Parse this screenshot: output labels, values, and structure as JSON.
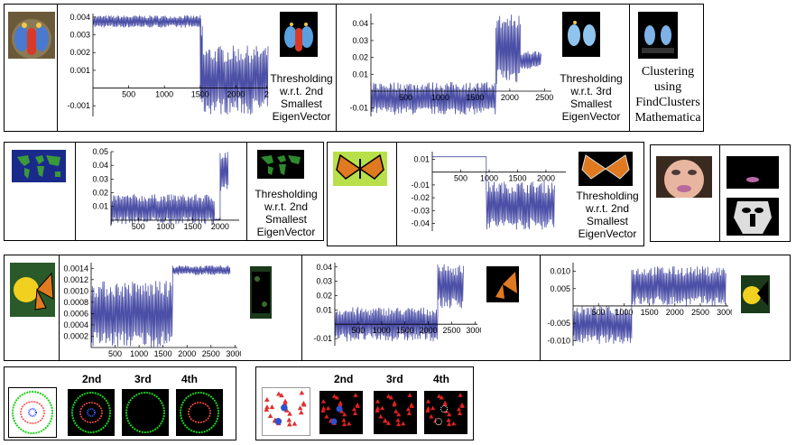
{
  "series_color": "#4b4fa6",
  "captions": {
    "thresh_2nd": [
      "Thresholding",
      "w.r.t. 2nd",
      "Smallest",
      "EigenVector"
    ],
    "thresh_3rd": [
      "Thresholding",
      "w.r.t. 3rd",
      "Smallest",
      "EigenVector"
    ],
    "clustering": [
      "Clustering",
      "using",
      "FindClusters",
      "Mathematica"
    ]
  },
  "eigen_labels": [
    "2nd",
    "3rd",
    "4th"
  ],
  "icons": {
    "mandrill": "mandrill-photo-icon",
    "world": "world-map-icon",
    "butterfly": "butterfly-photo-icon",
    "face": "face-photo-icon",
    "flower_butterfly": "butterfly-on-flower-photo-icon",
    "rings": "concentric-rings-icon",
    "triangles": "triangles-circles-icon"
  },
  "chart_data": [
    {
      "id": "mandrill-2nd",
      "type": "line",
      "x_ticks": [
        500,
        1000,
        1500,
        2000,
        2
      ],
      "y_ticks": [
        "0.004",
        "0.003",
        "0.002",
        "0.001",
        "-0.001"
      ],
      "xlim": [
        0,
        2450
      ],
      "ylim": [
        -0.0016,
        0.0042
      ],
      "segments": [
        {
          "x": [
            0,
            1500
          ],
          "low": 0.0034,
          "high": 0.0041
        },
        {
          "x": [
            1500,
            1530
          ],
          "low": -0.0015,
          "high": 0.0041
        },
        {
          "x": [
            1530,
            2450
          ],
          "low": -0.0015,
          "high": 0.0024
        }
      ]
    },
    {
      "id": "mandrill-3rd",
      "type": "line",
      "x_ticks": [
        500,
        1000,
        1500,
        2000,
        2500
      ],
      "y_ticks": [
        "0.04",
        "0.03",
        "0.02",
        "0.01",
        "-0.01"
      ],
      "xlim": [
        0,
        2600
      ],
      "ylim": [
        -0.015,
        0.046
      ],
      "segments": [
        {
          "x": [
            0,
            1800
          ],
          "low": -0.014,
          "high": 0.0055
        },
        {
          "x": [
            1800,
            2150
          ],
          "low": 0.004,
          "high": 0.046
        },
        {
          "x": [
            2150,
            2450
          ],
          "low": 0.013,
          "high": 0.024
        }
      ]
    },
    {
      "id": "world-2nd",
      "type": "line",
      "x_ticks": [
        500,
        1000,
        1500,
        2000
      ],
      "y_ticks": [
        "0.05",
        "0.04",
        "0.03",
        "0.02",
        "0.01"
      ],
      "xlim": [
        0,
        2350
      ],
      "ylim": [
        -0.004,
        0.05
      ],
      "segments": [
        {
          "x": [
            0,
            1900
          ],
          "low": -0.003,
          "high": 0.019
        },
        {
          "x": [
            1900,
            2000
          ],
          "low": 0,
          "high": 0.001
        },
        {
          "x": [
            2000,
            2150
          ],
          "low": 0.02,
          "high": 0.05
        }
      ]
    },
    {
      "id": "butterfly-2nd",
      "type": "line",
      "x_ticks": [
        500,
        1000,
        1500,
        2000
      ],
      "y_ticks": [
        "0.01",
        "-0.01",
        "-0.02",
        "-0.03",
        "-0.04"
      ],
      "xlim": [
        0,
        2350
      ],
      "ylim": [
        -0.046,
        0.016
      ],
      "segments": [
        {
          "x": [
            0,
            950
          ],
          "low": 0.012,
          "high": 0.012
        },
        {
          "x": [
            950,
            2150
          ],
          "low": -0.045,
          "high": -0.007
        }
      ]
    },
    {
      "id": "flower-butterfly-a",
      "type": "line",
      "x_ticks": [
        500,
        1000,
        1500,
        2000,
        2500,
        3000
      ],
      "y_ticks": [
        "0.0014",
        "0.0012",
        "0.0010",
        "0.0008",
        "0.0006",
        "0.0004",
        "0.0002"
      ],
      "xlim": [
        0,
        3050
      ],
      "ylim": [
        0,
        0.0015
      ],
      "segments": [
        {
          "x": [
            0,
            1700
          ],
          "low": 0,
          "high": 0.00118
        },
        {
          "x": [
            1700,
            2900
          ],
          "low": 0.00128,
          "high": 0.00145
        }
      ]
    },
    {
      "id": "flower-butterfly-b",
      "type": "line",
      "x_ticks": [
        500,
        1000,
        1500,
        2000,
        2500,
        3000
      ],
      "y_ticks": [
        "0.04",
        "0.03",
        "0.02",
        "0.01",
        "-0.01"
      ],
      "xlim": [
        0,
        3050
      ],
      "ylim": [
        -0.015,
        0.043
      ],
      "segments": [
        {
          "x": [
            0,
            2200
          ],
          "low": -0.012,
          "high": 0.012
        },
        {
          "x": [
            2200,
            2750
          ],
          "low": 0.011,
          "high": 0.042
        }
      ]
    },
    {
      "id": "flower-butterfly-c",
      "type": "line",
      "x_ticks": [
        500,
        1000,
        1500,
        2000,
        2500,
        3000
      ],
      "y_ticks": [
        "0.010",
        "0.005",
        "-0.005",
        "-0.010"
      ],
      "xlim": [
        0,
        3050
      ],
      "ylim": [
        -0.0115,
        0.0125
      ],
      "segments": [
        {
          "x": [
            0,
            1150
          ],
          "low": -0.011,
          "high": 0
        },
        {
          "x": [
            1150,
            3000
          ],
          "low": 0,
          "high": 0.0115
        }
      ]
    }
  ]
}
